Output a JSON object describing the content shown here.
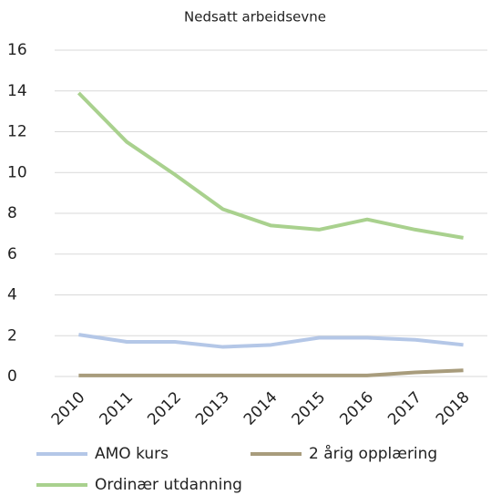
{
  "chart_data": {
    "type": "line",
    "title": "Nedsatt arbeidsevne",
    "categories": [
      "2010",
      "2011",
      "2012",
      "2013",
      "2014",
      "2015",
      "2016",
      "2017",
      "2018"
    ],
    "series": [
      {
        "name": "AMO kurs",
        "color": "#b4c7e7",
        "values": [
          2.05,
          1.7,
          1.7,
          1.45,
          1.55,
          1.9,
          1.9,
          1.8,
          1.55
        ]
      },
      {
        "name": "2 årig opplæring",
        "color": "#a89c7c",
        "values": [
          0.05,
          0.05,
          0.05,
          0.05,
          0.05,
          0.05,
          0.05,
          0.2,
          0.3
        ]
      },
      {
        "name": "Ordinær utdanning",
        "color": "#a9d18e",
        "values": [
          13.9,
          11.5,
          9.9,
          8.2,
          7.4,
          7.2,
          7.7,
          7.2,
          6.8
        ]
      }
    ],
    "ylim": [
      0,
      16
    ],
    "yticks": [
      0,
      2,
      4,
      6,
      8,
      10,
      12,
      14,
      16
    ],
    "grid": true
  }
}
